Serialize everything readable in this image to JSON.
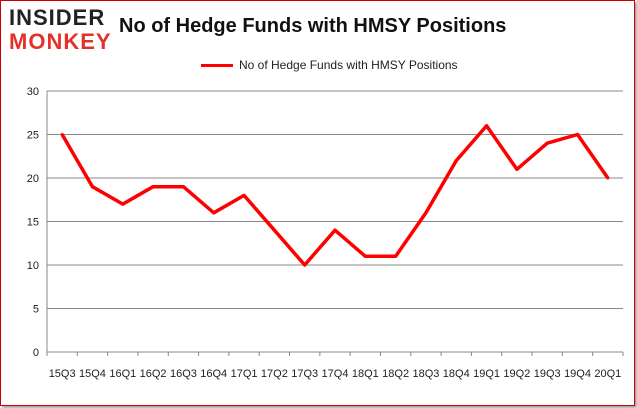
{
  "logo": {
    "line1": "INSIDER",
    "line2": "MONKEY"
  },
  "chart_data": {
    "type": "line",
    "title": "No of Hedge Funds with HMSY Positions",
    "categories": [
      "15Q3",
      "15Q4",
      "16Q1",
      "16Q2",
      "16Q3",
      "16Q4",
      "17Q1",
      "17Q2",
      "17Q3",
      "17Q4",
      "18Q1",
      "18Q2",
      "18Q3",
      "18Q4",
      "19Q1",
      "19Q2",
      "19Q3",
      "19Q4",
      "20Q1"
    ],
    "series": [
      {
        "name": "No of Hedge Funds with HMSY Positions",
        "color": "#ff0000",
        "values": [
          25,
          19,
          17,
          19,
          19,
          16,
          18,
          14,
          10,
          14,
          11,
          11,
          16,
          22,
          26,
          21,
          24,
          25,
          20
        ]
      }
    ],
    "ylim": [
      0,
      30
    ],
    "yticks": [
      0,
      5,
      10,
      15,
      20,
      25,
      30
    ],
    "grid": true,
    "legend": "top-center",
    "xlabel": "",
    "ylabel": ""
  }
}
